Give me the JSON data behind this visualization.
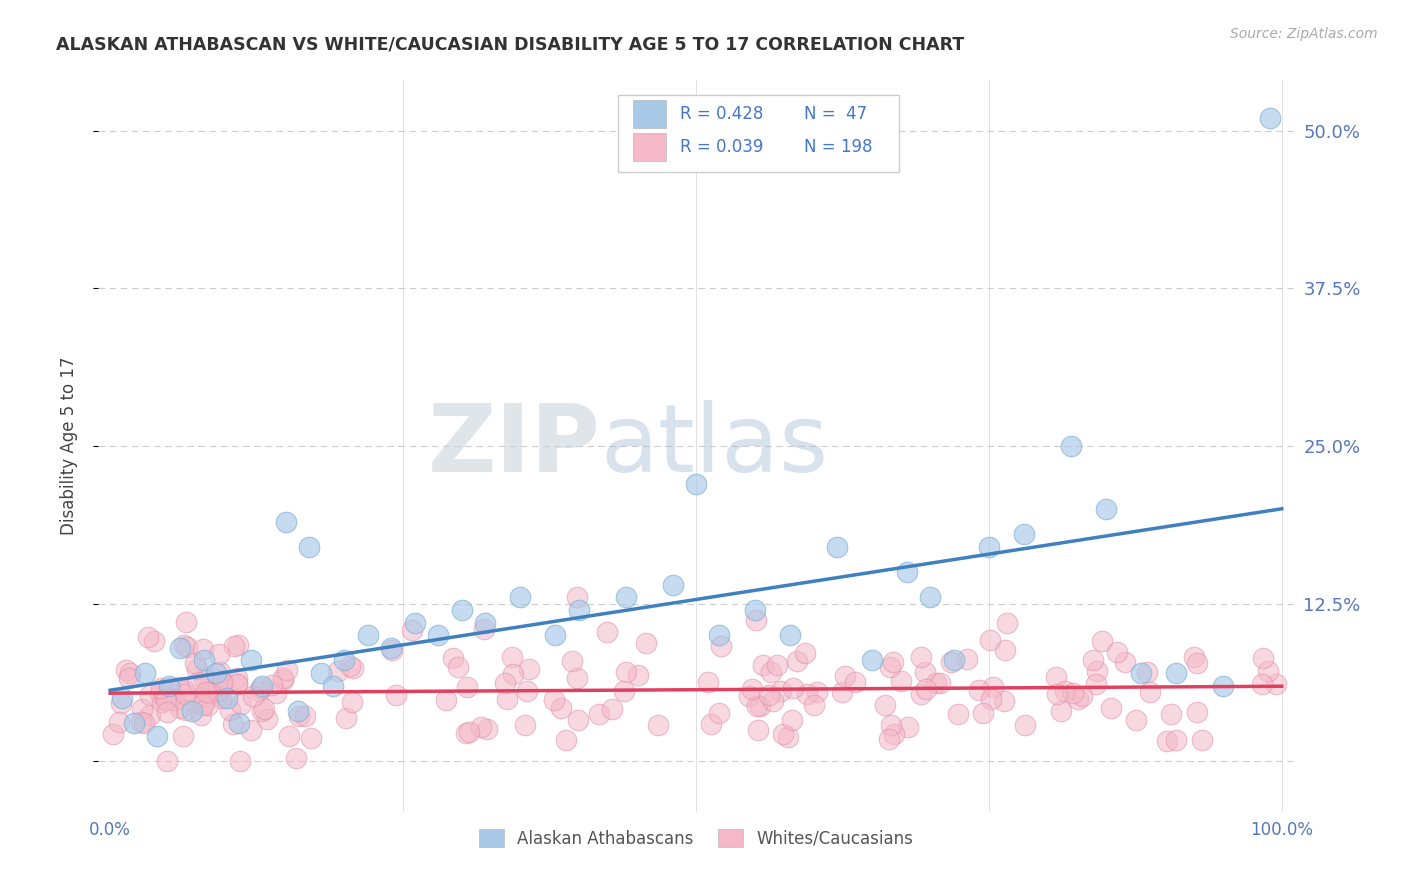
{
  "title": "ALASKAN ATHABASCAN VS WHITE/CAUCASIAN DISABILITY AGE 5 TO 17 CORRELATION CHART",
  "source_text": "Source: ZipAtlas.com",
  "ylabel": "Disability Age 5 to 17",
  "x_tick_labels": [
    "0.0%",
    "",
    "",
    "",
    "100.0%"
  ],
  "y_tick_labels_right": [
    "",
    "12.5%",
    "25.0%",
    "37.5%",
    "50.0%"
  ],
  "y_ticks": [
    0.0,
    0.125,
    0.25,
    0.375,
    0.5
  ],
  "x_ticks": [
    0.0,
    0.25,
    0.5,
    0.75,
    1.0
  ],
  "xlim": [
    -0.01,
    1.01
  ],
  "ylim": [
    -0.04,
    0.54
  ],
  "blue_color": "#a8c8e8",
  "blue_edge_color": "#7aafd4",
  "blue_line_color": "#4080c0",
  "pink_color": "#f4b8c8",
  "pink_edge_color": "#e090a8",
  "pink_line_color": "#e04060",
  "title_color": "#333333",
  "axis_tick_color": "#5577bb",
  "watermark_color": "#d8e4f0",
  "watermark_color2": "#c8d8e8",
  "R_blue": 0.428,
  "N_blue": 47,
  "R_pink": 0.039,
  "N_pink": 198,
  "blue_scatter_x": [
    0.01,
    0.02,
    0.03,
    0.04,
    0.05,
    0.06,
    0.07,
    0.08,
    0.09,
    0.1,
    0.11,
    0.12,
    0.13,
    0.15,
    0.16,
    0.17,
    0.18,
    0.19,
    0.2,
    0.22,
    0.24,
    0.26,
    0.28,
    0.3,
    0.32,
    0.35,
    0.38,
    0.4,
    0.44,
    0.48,
    0.5,
    0.52,
    0.55,
    0.58,
    0.62,
    0.65,
    0.68,
    0.7,
    0.72,
    0.75,
    0.78,
    0.82,
    0.85,
    0.88,
    0.91,
    0.95,
    0.99
  ],
  "blue_scatter_y": [
    0.05,
    0.03,
    0.07,
    0.02,
    0.06,
    0.09,
    0.04,
    0.08,
    0.07,
    0.05,
    0.03,
    0.08,
    0.06,
    0.19,
    0.04,
    0.17,
    0.07,
    0.06,
    0.08,
    0.1,
    0.09,
    0.11,
    0.1,
    0.12,
    0.11,
    0.13,
    0.1,
    0.12,
    0.13,
    0.14,
    0.22,
    0.1,
    0.12,
    0.1,
    0.17,
    0.08,
    0.15,
    0.13,
    0.08,
    0.17,
    0.18,
    0.25,
    0.2,
    0.07,
    0.07,
    0.06,
    0.51
  ],
  "background_color": "#ffffff",
  "grid_color": "#cccccc",
  "legend_text_color": "#4477cc"
}
